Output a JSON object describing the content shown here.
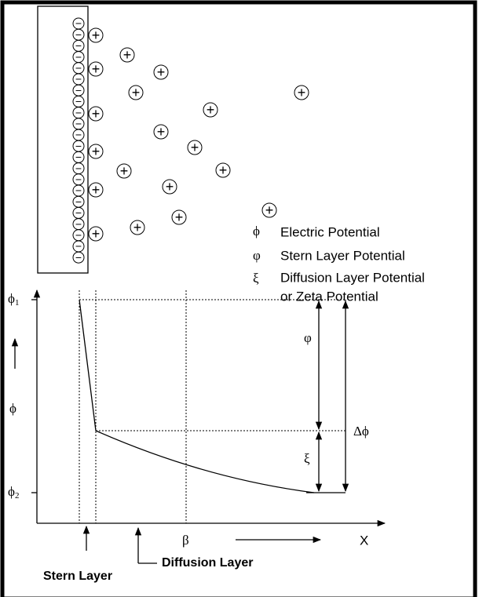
{
  "charges": {
    "negative": "−",
    "positive": "+"
  },
  "legend": [
    {
      "symbol": "ϕ",
      "text": "Electric Potential"
    },
    {
      "symbol": "φ",
      "text": "Stern Layer Potential"
    },
    {
      "symbol": "ξ",
      "text": "Diffusion Layer Potential",
      "text2": "or Zeta Potential"
    }
  ],
  "graph": {
    "y_labels": {
      "top": "ϕ",
      "top_sub": "1",
      "middle": "ϕ",
      "bottom": "ϕ",
      "bottom_sub": "2"
    },
    "stern_potential": "φ",
    "zeta_potential": "ξ",
    "delta": "Δϕ",
    "beta": "β",
    "x_axis": "X",
    "stern_layer": "Stern Layer",
    "diffusion_layer": "Diffusion Layer"
  }
}
